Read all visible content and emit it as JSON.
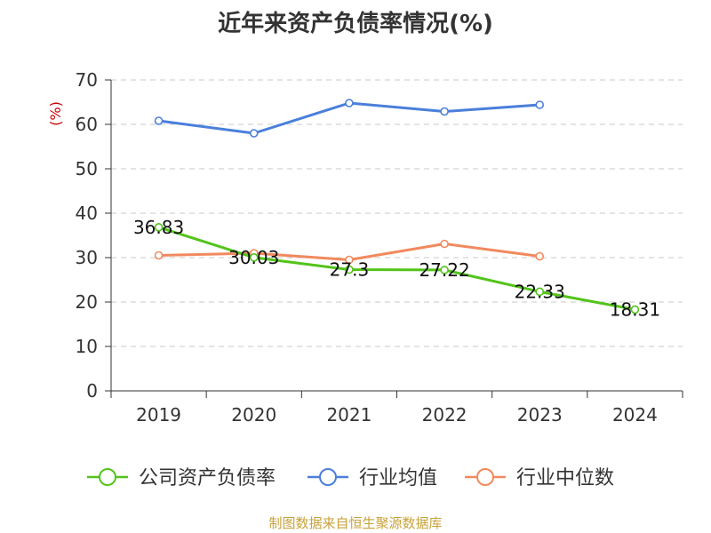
{
  "chart_data": {
    "type": "line",
    "title": "近年来资产负债率情况(%)",
    "ylabel": "(%)",
    "xlabel": "",
    "ylim": [
      0,
      70
    ],
    "yticks": [
      0,
      10,
      20,
      30,
      40,
      50,
      60,
      70
    ],
    "categories": [
      "2019",
      "2020",
      "2021",
      "2022",
      "2023",
      "2024"
    ],
    "grid": true,
    "legend": "bottom",
    "series": [
      {
        "name": "公司资产负债率",
        "color": "#52c41a",
        "values": [
          36.83,
          30.03,
          27.3,
          27.22,
          22.33,
          18.31
        ],
        "labels": [
          "36.83",
          "30.03",
          "27.3",
          "27.22",
          "22.33",
          "18.31"
        ]
      },
      {
        "name": "行业均值",
        "color": "#4a7fdb",
        "values": [
          60.8,
          58.0,
          64.8,
          62.9,
          64.4,
          null
        ]
      },
      {
        "name": "行业中位数",
        "color": "#f2895e",
        "values": [
          30.5,
          31.0,
          29.5,
          33.1,
          30.3,
          null
        ]
      }
    ]
  },
  "source_note": "制图数据来自恒生聚源数据库"
}
